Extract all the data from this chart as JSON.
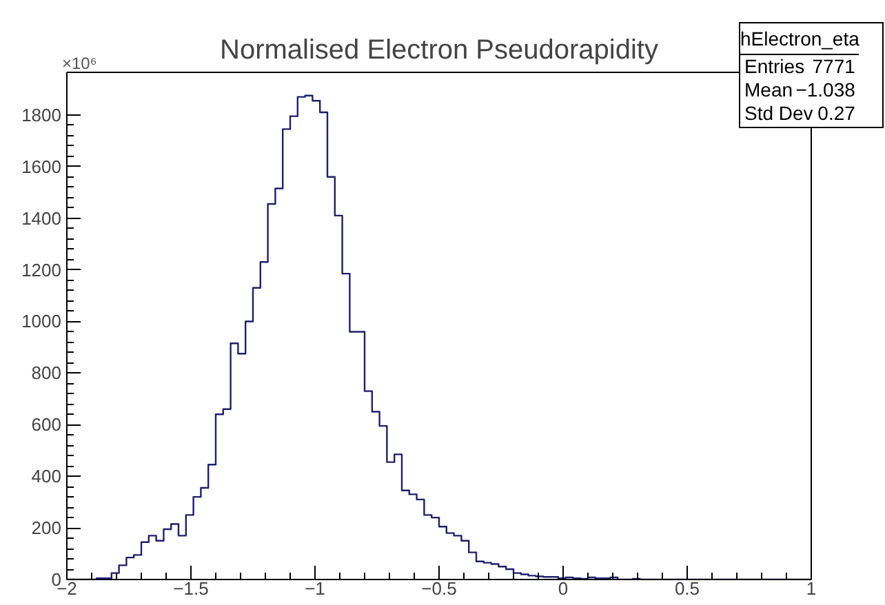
{
  "chart_data": {
    "type": "histogram",
    "title": "Normalised Electron Pseudorapidity",
    "bins": [
      -2,
      -1.97,
      -1.94,
      -1.91,
      -1.88,
      -1.85,
      -1.82,
      -1.79,
      -1.76,
      -1.73,
      -1.7,
      -1.67,
      -1.64,
      -1.61,
      -1.58,
      -1.55,
      -1.52,
      -1.49,
      -1.46,
      -1.43,
      -1.4,
      -1.37,
      -1.34,
      -1.31,
      -1.28,
      -1.25,
      -1.22,
      -1.19,
      -1.16,
      -1.13,
      -1.1,
      -1.07,
      -1.04,
      -1.01,
      -0.98,
      -0.95,
      -0.92,
      -0.89,
      -0.86,
      -0.83,
      -0.8,
      -0.77,
      -0.74,
      -0.71,
      -0.68,
      -0.65,
      -0.62,
      -0.59,
      -0.56,
      -0.53,
      -0.5,
      -0.47,
      -0.44,
      -0.41,
      -0.38,
      -0.35,
      -0.32,
      -0.29,
      -0.26,
      -0.23,
      -0.2,
      -0.17,
      -0.14,
      -0.11,
      -0.08,
      -0.05,
      -0.02,
      0.01,
      0.04,
      0.07,
      0.1,
      0.13,
      0.16,
      0.19,
      0.22,
      0.25,
      0.28,
      0.31,
      0.34,
      0.37,
      0.4,
      0.43,
      0.46,
      0.49,
      0.52,
      0.55,
      0.58,
      0.61,
      0.64,
      0.67,
      0.7,
      0.73,
      0.76,
      0.79,
      0.82,
      0.85,
      0.88,
      0.91,
      0.94,
      0.97,
      1
    ],
    "values": [
      0,
      0,
      0,
      0,
      5,
      5,
      25,
      55,
      85,
      95,
      145,
      170,
      150,
      195,
      215,
      170,
      250,
      320,
      355,
      445,
      640,
      660,
      915,
      875,
      1000,
      1130,
      1230,
      1455,
      1515,
      1745,
      1795,
      1870,
      1875,
      1855,
      1810,
      1560,
      1410,
      1185,
      960,
      960,
      730,
      650,
      595,
      455,
      485,
      345,
      330,
      310,
      250,
      240,
      205,
      180,
      170,
      150,
      105,
      70,
      65,
      60,
      50,
      40,
      25,
      20,
      15,
      12,
      10,
      10,
      5,
      8,
      5,
      3,
      8,
      5,
      5,
      8,
      0,
      0,
      3,
      0,
      0,
      0,
      0,
      0,
      0,
      0,
      0,
      0,
      0,
      0,
      0,
      0,
      0,
      0,
      0,
      0,
      0,
      0,
      0,
      0,
      0,
      0
    ],
    "color": "#1f1f6e",
    "xlim": [
      -2,
      1
    ],
    "ylim": [
      0,
      1965
    ],
    "xticks": [
      {
        "value": -2,
        "label": "−2"
      },
      {
        "value": -1.5,
        "label": "−1.5"
      },
      {
        "value": -1,
        "label": "−1"
      },
      {
        "value": -0.5,
        "label": "−0.5"
      },
      0,
      0.5,
      1
    ],
    "yticks": [
      0,
      200,
      400,
      600,
      800,
      1000,
      1200,
      1400,
      1600,
      1800
    ],
    "annotations": [
      "×10⁶",
      "hElectron_eta",
      "Entries",
      "7771",
      "Mean",
      "−1.038",
      "Std Dev",
      "0.27"
    ],
    "grid": false
  }
}
